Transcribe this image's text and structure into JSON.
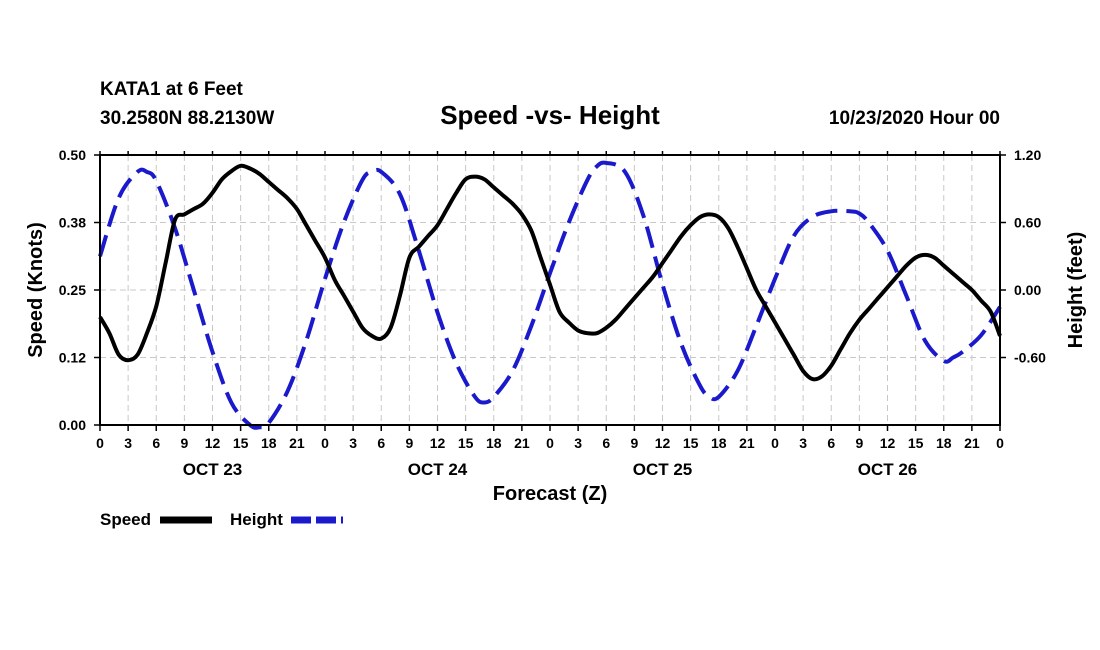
{
  "header": {
    "station": "KATA1 at 6 Feet",
    "coords": "30.2580N 88.2130W",
    "date": "10/23/2020 Hour 00"
  },
  "chart_data": {
    "type": "line",
    "title": "Speed -vs- Height",
    "xlabel": "Forecast (Z)",
    "ylabel_left": "Speed (Knots)",
    "ylabel_right": "Height (feet)",
    "x_hours_range": [
      0,
      96
    ],
    "x_ticks": [
      {
        "h": 0,
        "label": "0"
      },
      {
        "h": 3,
        "label": "3"
      },
      {
        "h": 6,
        "label": "6"
      },
      {
        "h": 9,
        "label": "9"
      },
      {
        "h": 12,
        "label": "12"
      },
      {
        "h": 15,
        "label": "15"
      },
      {
        "h": 18,
        "label": "18"
      },
      {
        "h": 21,
        "label": "21"
      },
      {
        "h": 24,
        "label": "0"
      },
      {
        "h": 27,
        "label": "3"
      },
      {
        "h": 30,
        "label": "6"
      },
      {
        "h": 33,
        "label": "9"
      },
      {
        "h": 36,
        "label": "12"
      },
      {
        "h": 39,
        "label": "15"
      },
      {
        "h": 42,
        "label": "18"
      },
      {
        "h": 45,
        "label": "21"
      },
      {
        "h": 48,
        "label": "0"
      },
      {
        "h": 51,
        "label": "3"
      },
      {
        "h": 54,
        "label": "6"
      },
      {
        "h": 57,
        "label": "9"
      },
      {
        "h": 60,
        "label": "12"
      },
      {
        "h": 63,
        "label": "15"
      },
      {
        "h": 66,
        "label": "18"
      },
      {
        "h": 69,
        "label": "21"
      },
      {
        "h": 72,
        "label": "0"
      },
      {
        "h": 75,
        "label": "3"
      },
      {
        "h": 78,
        "label": "6"
      },
      {
        "h": 81,
        "label": "9"
      },
      {
        "h": 84,
        "label": "12"
      },
      {
        "h": 87,
        "label": "15"
      },
      {
        "h": 90,
        "label": "18"
      },
      {
        "h": 93,
        "label": "21"
      },
      {
        "h": 96,
        "label": "0"
      }
    ],
    "day_labels": [
      {
        "h": 12,
        "label": "OCT 23"
      },
      {
        "h": 36,
        "label": "OCT 24"
      },
      {
        "h": 60,
        "label": "OCT 25"
      },
      {
        "h": 84,
        "label": "OCT 26"
      }
    ],
    "y_left": {
      "range": [
        0,
        0.5
      ],
      "ticks": [
        0,
        0.125,
        0.25,
        0.375,
        0.5
      ],
      "tick_labels": [
        "0.00",
        "0.12",
        "0.25",
        "0.38",
        "0.50"
      ]
    },
    "y_right": {
      "range": [
        -1.2,
        1.2
      ],
      "ticks": [
        -0.6,
        0,
        0.6,
        1.2
      ],
      "tick_labels": [
        "-0.60",
        "0.00",
        "0.60",
        "1.20"
      ]
    },
    "series": [
      {
        "name": "Speed",
        "axis": "left",
        "color": "#000000",
        "style": "solid",
        "x": [
          0,
          1,
          2,
          3,
          4,
          5,
          6,
          7,
          8,
          9,
          10,
          11,
          12,
          13,
          14,
          15,
          16,
          17,
          18,
          19,
          20,
          21,
          22,
          23,
          24,
          25,
          26,
          27,
          28,
          29,
          30,
          31,
          32,
          33,
          34,
          35,
          36,
          37,
          38,
          39,
          40,
          41,
          42,
          43,
          44,
          45,
          46,
          47,
          48,
          49,
          50,
          51,
          52,
          53,
          54,
          55,
          56,
          57,
          58,
          59,
          60,
          61,
          62,
          63,
          64,
          65,
          66,
          67,
          68,
          69,
          70,
          71,
          72,
          73,
          74,
          75,
          76,
          77,
          78,
          79,
          80,
          81,
          82,
          83,
          84,
          85,
          86,
          87,
          88,
          89,
          90,
          91,
          92,
          93,
          94,
          95,
          96
        ],
        "values": [
          0.2,
          0.17,
          0.13,
          0.12,
          0.13,
          0.17,
          0.22,
          0.3,
          0.38,
          0.39,
          0.4,
          0.41,
          0.43,
          0.455,
          0.47,
          0.48,
          0.475,
          0.465,
          0.45,
          0.435,
          0.42,
          0.4,
          0.37,
          0.34,
          0.31,
          0.27,
          0.24,
          0.21,
          0.18,
          0.165,
          0.16,
          0.18,
          0.24,
          0.31,
          0.33,
          0.35,
          0.37,
          0.4,
          0.43,
          0.455,
          0.46,
          0.455,
          0.44,
          0.425,
          0.41,
          0.39,
          0.36,
          0.31,
          0.26,
          0.21,
          0.19,
          0.175,
          0.17,
          0.17,
          0.18,
          0.195,
          0.215,
          0.235,
          0.255,
          0.275,
          0.3,
          0.325,
          0.35,
          0.37,
          0.385,
          0.39,
          0.385,
          0.365,
          0.33,
          0.29,
          0.25,
          0.22,
          0.19,
          0.16,
          0.13,
          0.1,
          0.085,
          0.09,
          0.11,
          0.14,
          0.17,
          0.195,
          0.215,
          0.235,
          0.255,
          0.275,
          0.295,
          0.31,
          0.315,
          0.31,
          0.295,
          0.28,
          0.265,
          0.25,
          0.23,
          0.21,
          0.165
        ]
      },
      {
        "name": "Height",
        "axis": "right",
        "color": "#1a1acc",
        "style": "dashed",
        "x": [
          0,
          2,
          4,
          5,
          6,
          8,
          10,
          12,
          14,
          16,
          17,
          18,
          20,
          22,
          24,
          26,
          28,
          29,
          30,
          32,
          34,
          36,
          38,
          40,
          41,
          42,
          44,
          46,
          48,
          50,
          52,
          53,
          54,
          56,
          58,
          60,
          62,
          64,
          65,
          66,
          68,
          70,
          72,
          74,
          76,
          78,
          80,
          81,
          82,
          84,
          86,
          88,
          90,
          91,
          92,
          94,
          96
        ],
        "values": [
          0.3,
          0.82,
          1.05,
          1.05,
          0.97,
          0.55,
          0.0,
          -0.55,
          -1.0,
          -1.2,
          -1.22,
          -1.18,
          -0.9,
          -0.45,
          0.1,
          0.6,
          0.98,
          1.05,
          1.05,
          0.85,
          0.35,
          -0.2,
          -0.65,
          -0.95,
          -1.0,
          -0.95,
          -0.72,
          -0.32,
          0.15,
          0.6,
          0.98,
          1.1,
          1.13,
          1.05,
          0.65,
          0.05,
          -0.48,
          -0.85,
          -0.95,
          -0.95,
          -0.72,
          -0.32,
          0.1,
          0.48,
          0.65,
          0.7,
          0.7,
          0.68,
          0.6,
          0.35,
          -0.05,
          -0.45,
          -0.63,
          -0.6,
          -0.55,
          -0.4,
          -0.15
        ]
      }
    ],
    "legend": [
      {
        "name": "Speed",
        "color": "#000000",
        "style": "solid"
      },
      {
        "name": "Height",
        "color": "#1a1acc",
        "style": "dashed"
      }
    ],
    "grid": true
  }
}
